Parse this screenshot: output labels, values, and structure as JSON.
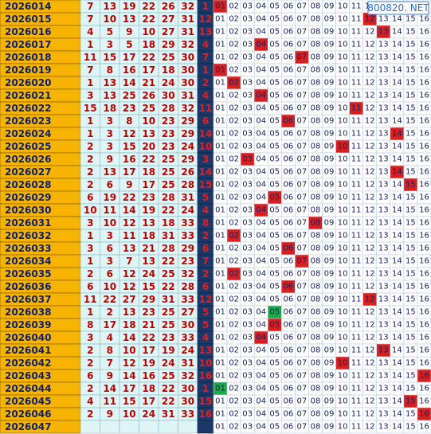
{
  "watermark": "800820. NET",
  "trend_labels": [
    "01",
    "02",
    "03",
    "04",
    "05",
    "06",
    "07",
    "08",
    "09",
    "10",
    "11",
    "12",
    "13",
    "14",
    "15",
    "16"
  ],
  "rows": [
    {
      "issue": "2026014",
      "reds": [
        7,
        13,
        19,
        22,
        26,
        32
      ],
      "blue": 1,
      "hit_color": "#d81e1e"
    },
    {
      "issue": "2026015",
      "reds": [
        7,
        10,
        13,
        22,
        27,
        31
      ],
      "blue": 12,
      "hit_color": "#d81e1e"
    },
    {
      "issue": "2026016",
      "reds": [
        4,
        5,
        9,
        10,
        27,
        31
      ],
      "blue": 13,
      "hit_color": "#d81e1e"
    },
    {
      "issue": "2026017",
      "reds": [
        1,
        3,
        5,
        18,
        29,
        32
      ],
      "blue": 4,
      "hit_color": "#d81e1e"
    },
    {
      "issue": "2026018",
      "reds": [
        11,
        15,
        17,
        22,
        25,
        30
      ],
      "blue": 7,
      "hit_color": "#d81e1e"
    },
    {
      "issue": "2026019",
      "reds": [
        7,
        8,
        16,
        17,
        18,
        30
      ],
      "blue": 1,
      "hit_color": "#d81e1e"
    },
    {
      "issue": "2026020",
      "reds": [
        1,
        13,
        14,
        21,
        24,
        30
      ],
      "blue": 2,
      "hit_color": "#d81e1e"
    },
    {
      "issue": "2026021",
      "reds": [
        3,
        13,
        25,
        26,
        30,
        31
      ],
      "blue": 4,
      "hit_color": "#d81e1e"
    },
    {
      "issue": "2026022",
      "reds": [
        15,
        18,
        23,
        25,
        28,
        32
      ],
      "blue": 11,
      "hit_color": "#d81e1e"
    },
    {
      "issue": "2026023",
      "reds": [
        1,
        3,
        8,
        10,
        23,
        29
      ],
      "blue": 6,
      "hit_color": "#d81e1e"
    },
    {
      "issue": "2026024",
      "reds": [
        1,
        3,
        12,
        13,
        23,
        29
      ],
      "blue": 14,
      "hit_color": "#d81e1e"
    },
    {
      "issue": "2026025",
      "reds": [
        2,
        3,
        15,
        20,
        23,
        24
      ],
      "blue": 10,
      "hit_color": "#d81e1e"
    },
    {
      "issue": "2026026",
      "reds": [
        2,
        9,
        16,
        22,
        25,
        29
      ],
      "blue": 3,
      "hit_color": "#d81e1e"
    },
    {
      "issue": "2026027",
      "reds": [
        2,
        13,
        17,
        18,
        25,
        26
      ],
      "blue": 14,
      "hit_color": "#d81e1e"
    },
    {
      "issue": "2026028",
      "reds": [
        2,
        6,
        9,
        17,
        25,
        28
      ],
      "blue": 15,
      "hit_color": "#d81e1e"
    },
    {
      "issue": "2026029",
      "reds": [
        6,
        19,
        22,
        23,
        28,
        31
      ],
      "blue": 5,
      "hit_color": "#d81e1e"
    },
    {
      "issue": "2026030",
      "reds": [
        10,
        11,
        14,
        19,
        22,
        24
      ],
      "blue": 4,
      "hit_color": "#d81e1e"
    },
    {
      "issue": "2026031",
      "reds": [
        3,
        10,
        12,
        13,
        18,
        33
      ],
      "blue": 8,
      "hit_color": "#d81e1e"
    },
    {
      "issue": "2026032",
      "reds": [
        1,
        3,
        11,
        18,
        31,
        33
      ],
      "blue": 2,
      "hit_color": "#d81e1e"
    },
    {
      "issue": "2026033",
      "reds": [
        3,
        6,
        13,
        21,
        28,
        29
      ],
      "blue": 6,
      "hit_color": "#d81e1e"
    },
    {
      "issue": "2026034",
      "reds": [
        1,
        3,
        7,
        13,
        22,
        23
      ],
      "blue": 7,
      "hit_color": "#d81e1e"
    },
    {
      "issue": "2026035",
      "reds": [
        2,
        6,
        12,
        24,
        25,
        32
      ],
      "blue": 2,
      "hit_color": "#d81e1e"
    },
    {
      "issue": "2026036",
      "reds": [
        6,
        10,
        12,
        15,
        22,
        28
      ],
      "blue": 6,
      "hit_color": "#d81e1e"
    },
    {
      "issue": "2026037",
      "reds": [
        11,
        22,
        27,
        29,
        31,
        33
      ],
      "blue": 12,
      "hit_color": "#d81e1e"
    },
    {
      "issue": "2026038",
      "reds": [
        1,
        2,
        13,
        23,
        25,
        27
      ],
      "blue": 5,
      "hit_color": "#1fa84a"
    },
    {
      "issue": "2026039",
      "reds": [
        8,
        17,
        18,
        21,
        25,
        30
      ],
      "blue": 5,
      "hit_color": "#d81e1e"
    },
    {
      "issue": "2026040",
      "reds": [
        3,
        4,
        14,
        22,
        23,
        33
      ],
      "blue": 4,
      "hit_color": "#d81e1e"
    },
    {
      "issue": "2026041",
      "reds": [
        2,
        8,
        10,
        17,
        19,
        24
      ],
      "blue": 13,
      "hit_color": "#d81e1e"
    },
    {
      "issue": "2026042",
      "reds": [
        2,
        7,
        12,
        19,
        24,
        31
      ],
      "blue": 10,
      "hit_color": "#d81e1e"
    },
    {
      "issue": "2026043",
      "reds": [
        6,
        9,
        14,
        16,
        25,
        32
      ],
      "blue": 16,
      "hit_color": "#d81e1e"
    },
    {
      "issue": "2026044",
      "reds": [
        2,
        14,
        17,
        18,
        22,
        30
      ],
      "blue": 1,
      "hit_color": "#1fa84a"
    },
    {
      "issue": "2026045",
      "reds": [
        4,
        11,
        15,
        17,
        22,
        30
      ],
      "blue": 15,
      "hit_color": "#d81e1e"
    },
    {
      "issue": "2026046",
      "reds": [
        2,
        9,
        10,
        24,
        31,
        33
      ],
      "blue": 16,
      "hit_color": "#d81e1e"
    },
    {
      "issue": "2026047",
      "reds": []
    }
  ]
}
